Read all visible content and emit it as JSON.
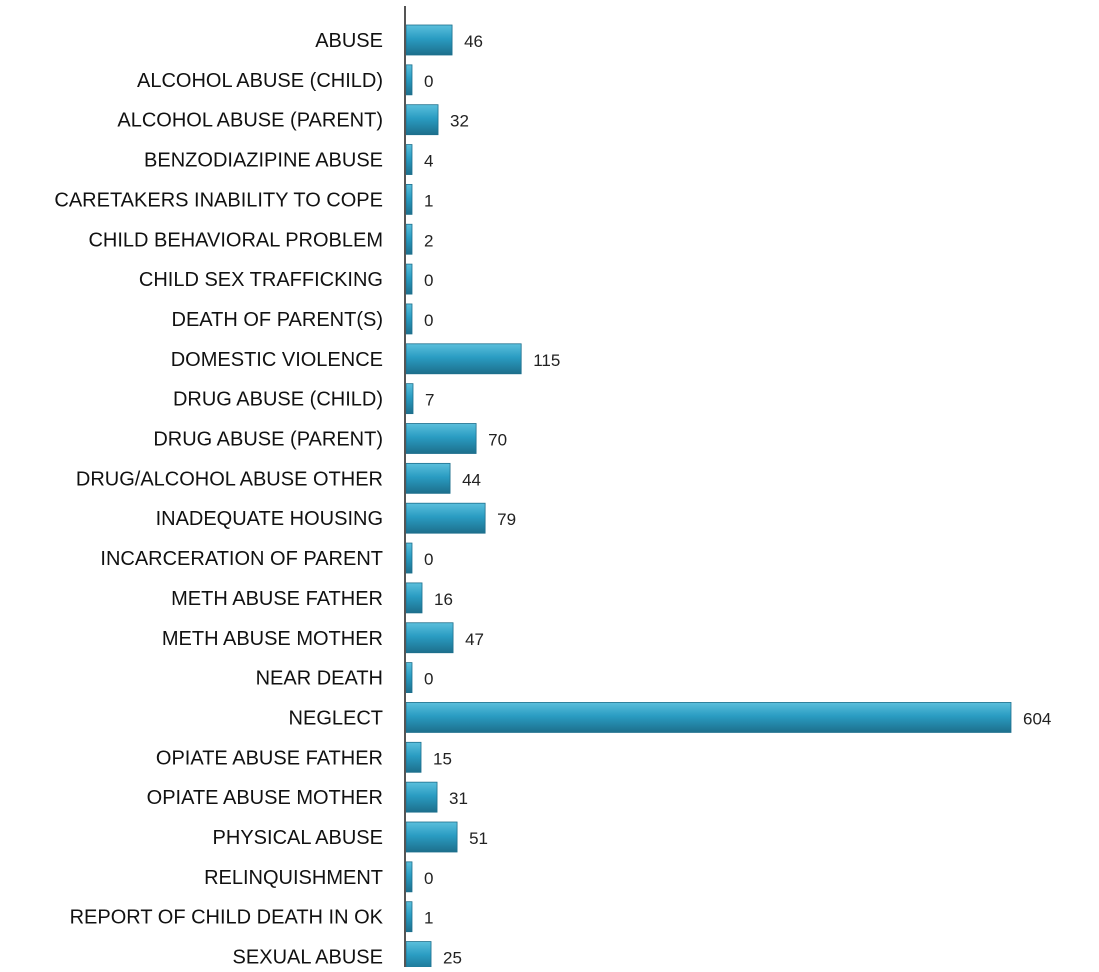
{
  "chart_data": {
    "type": "bar",
    "orientation": "horizontal",
    "title": "",
    "xlabel": "",
    "ylabel": "",
    "grid": false,
    "legend": "none",
    "bar_color": "#2a9cc2",
    "bar_edge_color": "#1d6f8c",
    "bar_highlight_color": "#5bbfdc",
    "axis_color": "#555555",
    "xlim": [
      0,
      604
    ],
    "categories": [
      "ABUSE",
      "ALCOHOL ABUSE (CHILD)",
      "ALCOHOL ABUSE (PARENT)",
      "BENZODIAZIPINE ABUSE",
      "CARETAKERS INABILITY TO COPE",
      "CHILD BEHAVIORAL PROBLEM",
      "CHILD SEX TRAFFICKING",
      "DEATH OF PARENT(S)",
      "DOMESTIC VIOLENCE",
      "DRUG ABUSE (CHILD)",
      "DRUG ABUSE (PARENT)",
      "DRUG/ALCOHOL ABUSE OTHER",
      "INADEQUATE HOUSING",
      "INCARCERATION OF PARENT",
      "METH ABUSE FATHER",
      "METH ABUSE MOTHER",
      "NEAR DEATH",
      "NEGLECT",
      "OPIATE ABUSE FATHER",
      "OPIATE ABUSE MOTHER",
      "PHYSICAL ABUSE",
      "RELINQUISHMENT",
      "REPORT OF CHILD DEATH IN OK",
      "SEXUAL ABUSE"
    ],
    "values": [
      46,
      0,
      32,
      4,
      1,
      2,
      0,
      0,
      115,
      7,
      70,
      44,
      79,
      0,
      16,
      47,
      0,
      604,
      15,
      31,
      51,
      0,
      1,
      25
    ]
  }
}
